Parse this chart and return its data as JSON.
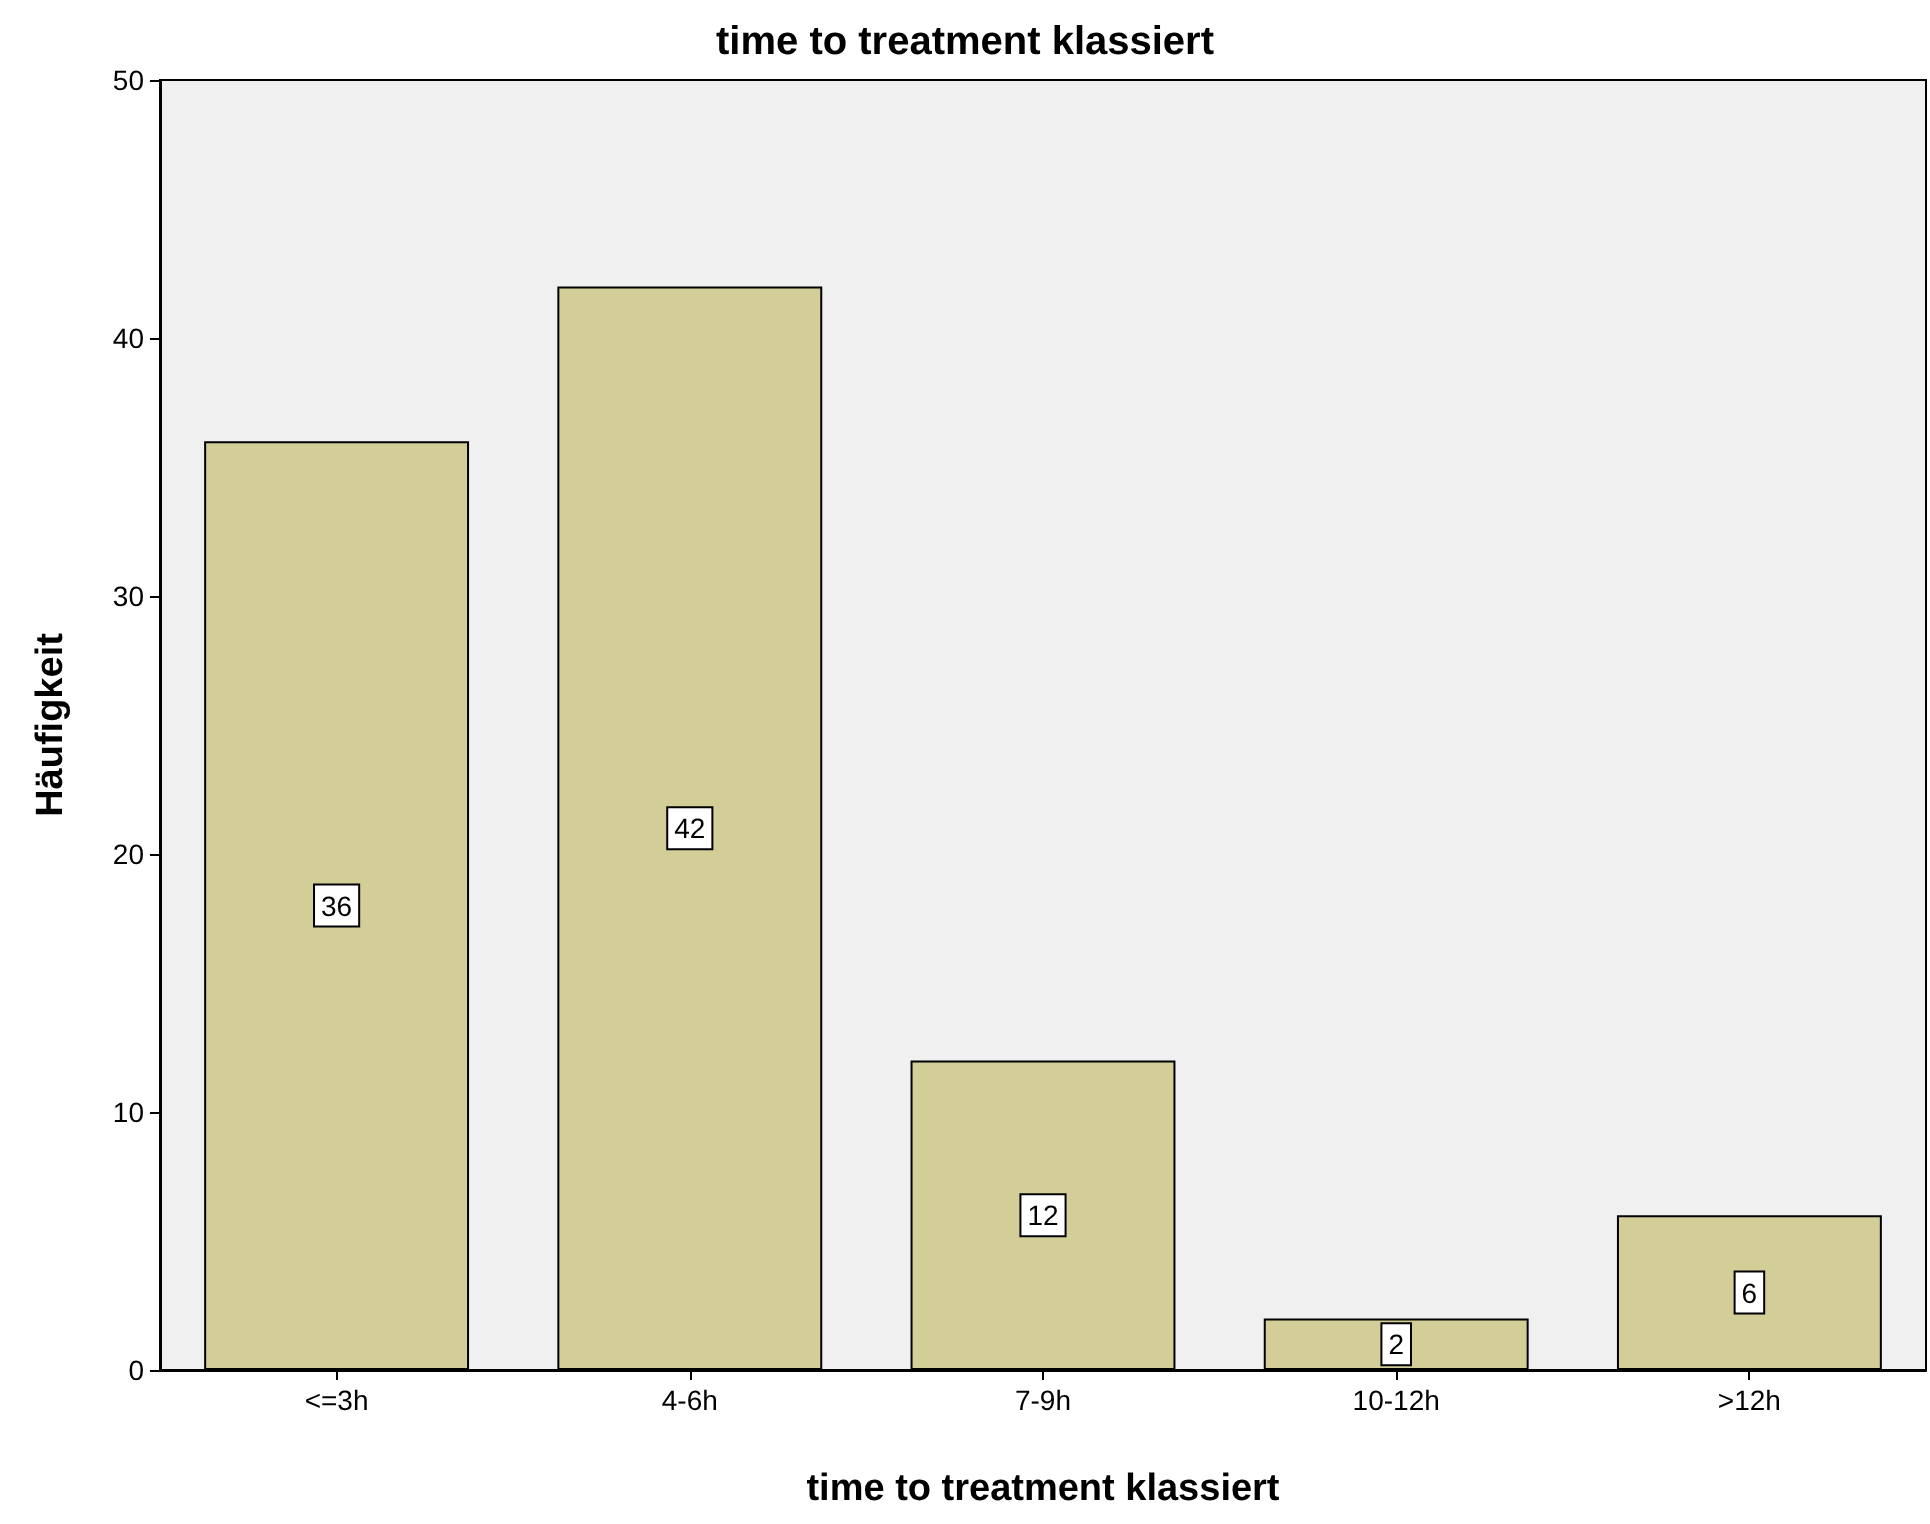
{
  "chart_data": {
    "type": "bar",
    "title": "time to treatment klassiert",
    "xlabel": "time to treatment klassiert",
    "ylabel": "Häufigkeit",
    "categories": [
      "<=3h",
      "4-6h",
      "7-9h",
      "10-12h",
      ">12h"
    ],
    "values": [
      36,
      42,
      12,
      2,
      6
    ],
    "color": "#d3ce97",
    "ylim": [
      0,
      50
    ],
    "yticks": [
      0,
      10,
      20,
      30,
      40,
      50
    ],
    "grid": false,
    "data_labels": true
  }
}
